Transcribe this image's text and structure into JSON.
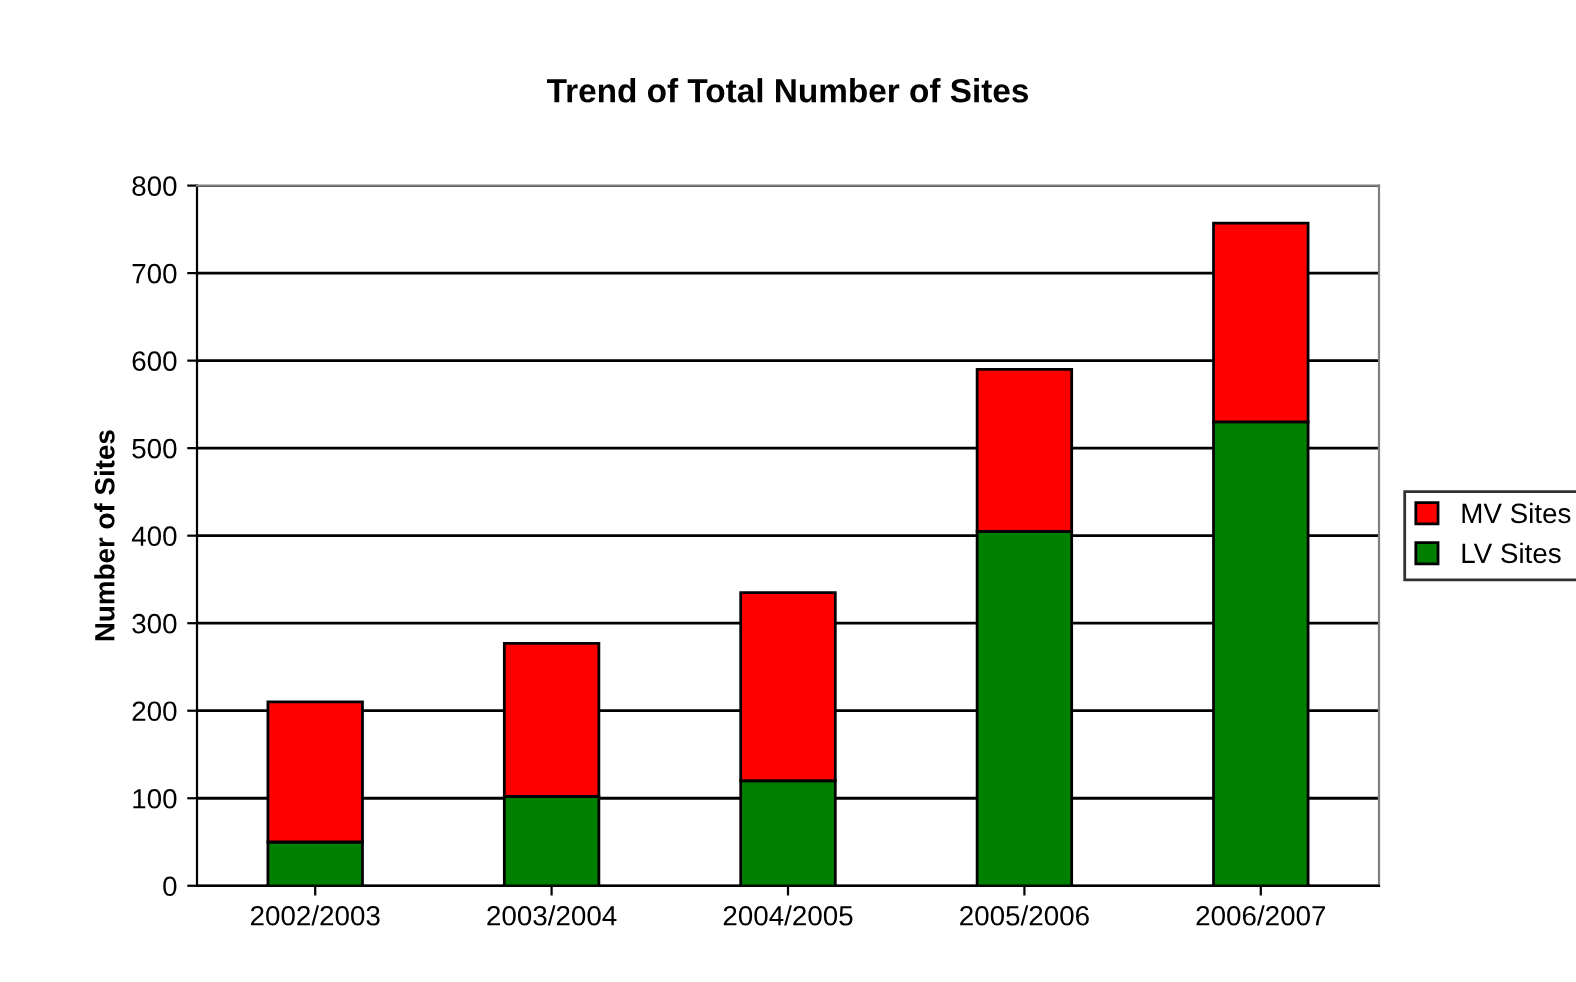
{
  "chart_data": {
    "type": "bar",
    "title": "Trend of Total Number of Sites",
    "ylabel": "Number of Sites",
    "categories": [
      "2002/2003",
      "2003/2004",
      "2004/2005",
      "2005/2006",
      "2006/2007"
    ],
    "stacked": true,
    "series": [
      {
        "name": "LV Sites",
        "color": "#008000",
        "values": [
          50,
          102,
          120,
          405,
          530
        ]
      },
      {
        "name": "MV Sites",
        "color": "#ff0000",
        "values": [
          160,
          175,
          215,
          185,
          227
        ]
      }
    ],
    "ylim": [
      0,
      800
    ],
    "yticks": [
      0,
      100,
      200,
      300,
      400,
      500,
      600,
      700,
      800
    ],
    "grid": "y",
    "legend": "right"
  }
}
